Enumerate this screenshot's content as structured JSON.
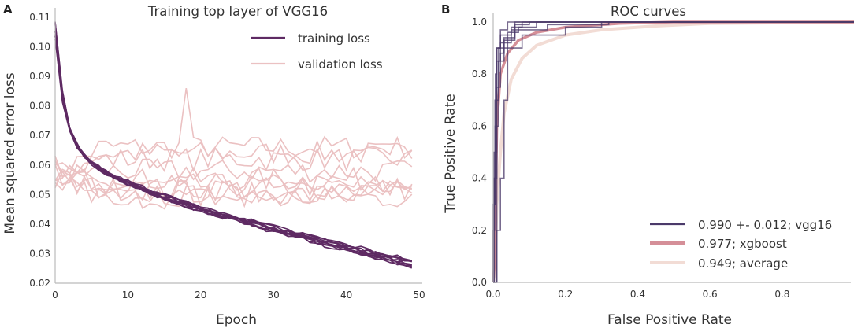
{
  "colors": {
    "train": "#5e2a63",
    "val": "#ebc1c2",
    "vgg16": "#4b3a6a",
    "xgboost": "#d58f98",
    "average": "#f2dcd5",
    "axis": "#bbbbbb"
  },
  "chart_data": [
    {
      "panel": "A",
      "type": "line",
      "title": "Training top layer of VGG16",
      "xlabel": "Epoch",
      "ylabel": "Mean squared error loss",
      "xlim": [
        0,
        50
      ],
      "ylim": [
        0.02,
        0.11
      ],
      "xticks": [
        0,
        10,
        20,
        30,
        40,
        50
      ],
      "yticks": [
        0.02,
        0.03,
        0.04,
        0.05,
        0.06,
        0.07,
        0.08,
        0.09,
        0.1,
        0.11
      ],
      "ytick_labels": [
        "0.02",
        "0.03",
        "0.04",
        "0.05",
        "0.06",
        "0.07",
        "0.08",
        "0.09",
        "0.10",
        "0.11"
      ],
      "legend_position": "top-right",
      "legend": [
        "training loss",
        "validation loss"
      ],
      "training_model": {
        "description": "10 folds, exponential-like decay",
        "final_values": [
          0.0255,
          0.026,
          0.0265,
          0.0268,
          0.027,
          0.0272,
          0.0275,
          0.0262,
          0.0258,
          0.0278
        ],
        "start_values": [
          0.107,
          0.105,
          0.103,
          0.108,
          0.104,
          0.106,
          0.102,
          0.109,
          0.105,
          0.103
        ]
      },
      "validation_model": {
        "description": "10 folds, noisy plateaus",
        "levels": [
          0.066,
          0.064,
          0.062,
          0.058,
          0.055,
          0.053,
          0.052,
          0.051,
          0.05,
          0.049
        ],
        "spike": {
          "epoch": 18,
          "value": 0.086
        }
      }
    },
    {
      "panel": "B",
      "type": "line",
      "title": "ROC curves",
      "xlabel": "False Positive Rate",
      "ylabel": "True Positive Rate",
      "xlim": [
        0,
        1
      ],
      "ylim": [
        0,
        1
      ],
      "xticks": [
        0,
        0.2,
        0.4,
        0.6,
        0.8
      ],
      "xtick_labels": [
        "0.0",
        "0.2",
        "0.4",
        "0.6",
        "0.8"
      ],
      "yticks": [
        0,
        0.2,
        0.4,
        0.6,
        0.8,
        1.0
      ],
      "ytick_labels": [
        "0.0",
        "0.2",
        "0.4",
        "0.6",
        "0.8",
        "1.0"
      ],
      "legend_position": "bottom-right",
      "series": [
        {
          "name": "0.990 +- 0.012; vgg16",
          "curves": [
            [
              [
                0,
                0
              ],
              [
                0,
                0.2
              ],
              [
                0.004,
                0.4
              ],
              [
                0.006,
                0.8
              ],
              [
                0.01,
                0.9
              ],
              [
                0.02,
                0.97
              ],
              [
                0.04,
                1.0
              ],
              [
                1,
                1
              ]
            ],
            [
              [
                0,
                0
              ],
              [
                0,
                0.3
              ],
              [
                0.005,
                0.6
              ],
              [
                0.01,
                0.85
              ],
              [
                0.03,
                0.93
              ],
              [
                0.06,
                0.99
              ],
              [
                0.1,
                1.0
              ],
              [
                1,
                1
              ]
            ],
            [
              [
                0,
                0
              ],
              [
                0.002,
                0.5
              ],
              [
                0.01,
                0.9
              ],
              [
                0.02,
                0.95
              ],
              [
                0.05,
                0.98
              ],
              [
                0.08,
                1.0
              ],
              [
                1,
                1
              ]
            ],
            [
              [
                0,
                0
              ],
              [
                0.01,
                0.6
              ],
              [
                0.015,
                0.85
              ],
              [
                0.02,
                0.92
              ],
              [
                0.05,
                0.97
              ],
              [
                0.15,
                0.99
              ],
              [
                0.32,
                1.0
              ],
              [
                1,
                1
              ]
            ],
            [
              [
                0,
                0
              ],
              [
                0.003,
                0.4
              ],
              [
                0.01,
                0.75
              ],
              [
                0.02,
                0.88
              ],
              [
                0.03,
                0.94
              ],
              [
                0.06,
                1.0
              ],
              [
                1,
                1
              ]
            ],
            [
              [
                0,
                0
              ],
              [
                0.001,
                0.3
              ],
              [
                0.005,
                0.7
              ],
              [
                0.015,
                0.9
              ],
              [
                0.04,
                0.96
              ],
              [
                0.07,
                0.98
              ],
              [
                0.12,
                1.0
              ],
              [
                1,
                1
              ]
            ],
            [
              [
                0,
                0
              ],
              [
                0.01,
                0.2
              ],
              [
                0.02,
                0.4
              ],
              [
                0.03,
                0.7
              ],
              [
                0.04,
                0.9
              ],
              [
                0.08,
                0.95
              ],
              [
                0.2,
                0.98
              ],
              [
                0.3,
                1.0
              ],
              [
                1,
                1
              ]
            ]
          ]
        },
        {
          "name": "0.977; xgboost",
          "curves": [
            [
              [
                0,
                0
              ],
              [
                0.005,
                0.1
              ],
              [
                0.01,
                0.6
              ],
              [
                0.02,
                0.8
              ],
              [
                0.04,
                0.88
              ],
              [
                0.07,
                0.93
              ],
              [
                0.12,
                0.96
              ],
              [
                0.2,
                0.98
              ],
              [
                0.35,
                0.995
              ],
              [
                0.5,
                1.0
              ],
              [
                1,
                1
              ]
            ]
          ]
        },
        {
          "name": "0.949; average",
          "curves": [
            [
              [
                0,
                0
              ],
              [
                0.005,
                0.05
              ],
              [
                0.01,
                0.3
              ],
              [
                0.02,
                0.5
              ],
              [
                0.03,
                0.65
              ],
              [
                0.05,
                0.78
              ],
              [
                0.08,
                0.86
              ],
              [
                0.12,
                0.91
              ],
              [
                0.2,
                0.95
              ],
              [
                0.3,
                0.97
              ],
              [
                0.45,
                0.985
              ],
              [
                0.6,
                0.995
              ],
              [
                1,
                1.0
              ]
            ]
          ]
        }
      ]
    }
  ]
}
